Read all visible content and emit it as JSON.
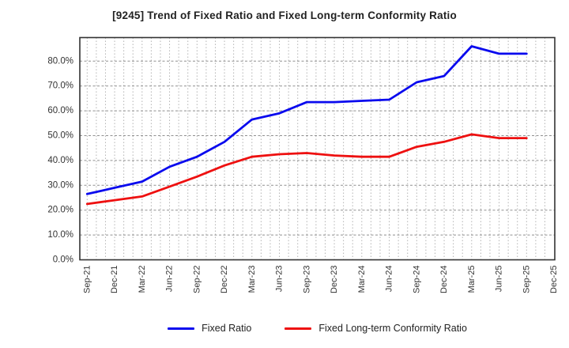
{
  "title": "[9245]  Trend of Fixed Ratio and Fixed Long-term Conformity Ratio",
  "chart_data": {
    "type": "line",
    "categories": [
      "Sep-21",
      "Dec-21",
      "Mar-22",
      "Jun-22",
      "Sep-22",
      "Dec-22",
      "Mar-23",
      "Jun-23",
      "Sep-23",
      "Dec-23",
      "Mar-24",
      "Jun-24",
      "Sep-24",
      "Dec-24",
      "Mar-25",
      "Jun-25",
      "Sep-25",
      "Dec-25"
    ],
    "series": [
      {
        "name": "Fixed Ratio",
        "color": "#0a0aee",
        "values": [
          26.5,
          29.0,
          31.5,
          37.5,
          41.5,
          47.5,
          56.5,
          59.0,
          63.5,
          63.5,
          64.0,
          64.5,
          71.5,
          74.0,
          86.0,
          83.0,
          83.0
        ]
      },
      {
        "name": "Fixed Long-term Conformity Ratio",
        "color": "#ee1010",
        "values": [
          22.5,
          24.0,
          25.5,
          29.5,
          33.5,
          38.0,
          41.5,
          42.5,
          43.0,
          42.0,
          41.5,
          41.5,
          45.5,
          47.5,
          50.5,
          49.0,
          49.0
        ]
      }
    ],
    "title": "[9245]  Trend of Fixed Ratio and Fixed Long-term Conformity Ratio",
    "xlabel": "",
    "ylabel": "",
    "ylim": [
      0,
      90
    ],
    "y_ticks": [
      "0.0%",
      "10.0%",
      "20.0%",
      "30.0%",
      "40.0%",
      "50.0%",
      "60.0%",
      "70.0%",
      "80.0%"
    ],
    "grid": "horizontal dashed per 10%, vertical dotted monthly",
    "legend_position": "bottom-center",
    "note": "no data plotted at Dec-25"
  },
  "style_colors": {
    "title_color": "#222222",
    "tick_label_color": "#333333",
    "frame_color": "#333333",
    "h_grid_color": "#8f8f8f",
    "v_grid_color": "#b3b3b3"
  }
}
